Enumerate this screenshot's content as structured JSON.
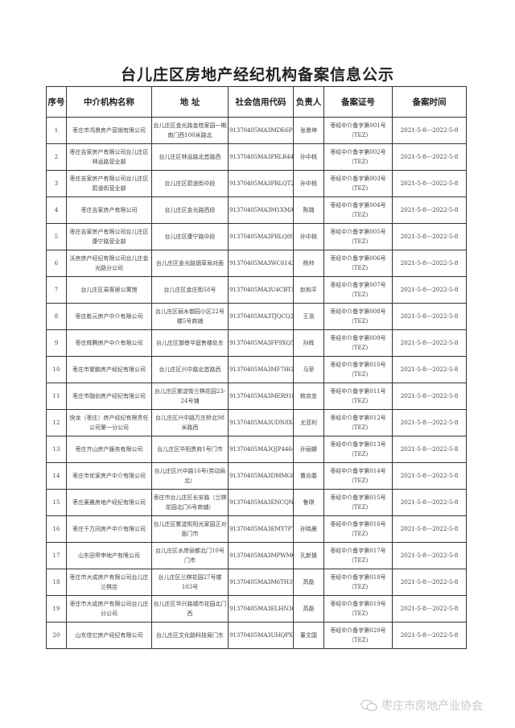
{
  "title": "台儿庄区房地产经纪机构备案信息公示",
  "headers": [
    "序号",
    "中介机构名称",
    "地 址",
    "社会信用代码",
    "负责人",
    "备案证号",
    "备案时间"
  ],
  "rows": [
    {
      "no": "1",
      "name": "枣庄市鸿景房产营销有限公司",
      "address": "台儿庄区金光路金桂家园一期南门西100米路北",
      "code": "91370405MA3MDE6P4D",
      "person": "张景坤",
      "cert": "枣经中介备字第001号（TEZ)",
      "period": "2021-5-8---2022-5-8"
    },
    {
      "no": "2",
      "name": "枣庄吉家房产有限公司台儿庄区林运路营业部",
      "address": "台儿庄区林运路北首路西",
      "code": "91370405MA3PRLR443",
      "person": "孙中桃",
      "cert": "枣经中介备字第002号（TEZ)",
      "period": "2021-5-8---2022-5-8"
    },
    {
      "no": "3",
      "name": "枣庄吉家房产有限公司台儿庄区箭道街营业部",
      "address": "台儿庄区箭道街中段",
      "code": "91370405MA3PRLQT2X",
      "person": "孙中桃",
      "cert": "枣经中介备字第003号（TEZ)",
      "period": "2021-5-8---2022-5-8"
    },
    {
      "no": "4",
      "name": "枣庄吉家房产有限公司",
      "address": "台儿庄区金光路西段",
      "code": "91370405MA3M1XMAX2",
      "person": "陈璐",
      "cert": "枣经中介备字第004号（TEZ)",
      "period": "2021-5-8---2022-5-8"
    },
    {
      "no": "5",
      "name": "枣庄吉家房产有限公司台儿庄区康宁路营业部",
      "address": "台儿庄区康宁路中段",
      "code": "91370405MA3PRLQ805",
      "person": "孙中桃",
      "cert": "枣经中介备字第005号（TEZ)",
      "period": "2021-5-8---2022-5-8"
    },
    {
      "no": "6",
      "name": "沃房房产经纪有限公司台儿庄金光路分公司",
      "address": "台儿庄区金光路烟草局对面",
      "code": "91370405MA3WC6142P",
      "person": "杨帅",
      "cert": "枣经中介备字第006号（TEZ)",
      "period": "2021-5-8---2022-5-8"
    },
    {
      "no": "7",
      "name": "台儿庄区易客居公寓馆",
      "address": "台儿庄区金庄街58号",
      "code": "91370405MA3U4CBT1U",
      "person": "赵和平",
      "cert": "枣经中介备字第007号（TEZ)",
      "period": "2021-5-8---2022-5-8"
    },
    {
      "no": "8",
      "name": "枣庄乾元房产中介有限公司",
      "address": "台儿庄区丽水御园小区22号楼5号商铺",
      "code": "91370405MA3TJQCQ26",
      "person": "王浩",
      "cert": "枣经中介备字第008号（TEZ)",
      "period": "2021-5-8---2022-5-8"
    },
    {
      "no": "9",
      "name": "枣庄辉腾房产中介有限公司",
      "address": "台儿庄区御景华庭售楼处东",
      "code": "91370405MA3FF9XQ50",
      "person": "孙辉",
      "cert": "枣经中介备字第009号（TEZ)",
      "period": "2021-5-8---2022-5-8"
    },
    {
      "no": "10",
      "name": "枣庄市聚鹏房产经纪有限公司",
      "address": "台儿庄区兴中路北首路西",
      "code": "91370405MA3MF7HG2B",
      "person": "马菲",
      "cert": "枣经中介备字第010号（TEZ)",
      "period": "2021-5-8---2022-5-8"
    },
    {
      "no": "11",
      "name": "枣庄市融创房产经纪有限公司",
      "address": "台儿庄区紫淀街兰棋花园23-24号铺",
      "code": "91370405MA3MER918B",
      "person": "韩京忠",
      "cert": "枣经中介备字第011号（TEZ)",
      "period": "2021-5-8---2022-5-8"
    },
    {
      "no": "12",
      "name": "快龙（枣庄）房产经纪有限责任公司第一分公司",
      "address": "台儿庄区兴中路万庄桥北98米路西",
      "code": "91370405MA3UDN8X48",
      "person": "尤亚利",
      "cert": "枣经中介备字第012号（TEZ)",
      "period": "2021-5-8---2022-5-8"
    },
    {
      "no": "13",
      "name": "枣庄齐山房产服务有限公司",
      "address": "台儿庄区华阳贵府1号门市",
      "code": "91370405MA3QJP4464",
      "person": "孙丽娜",
      "cert": "枣经中介备字第013号（TEZ)",
      "period": "2021-5-8---2022-5-8"
    },
    {
      "no": "14",
      "name": "枣庄市优家房产中介有限公司",
      "address": "台儿庄区兴中路16号(劳动局北）",
      "code": "91370405MA3DMMG06G",
      "person": "曹向春",
      "cert": "枣经中介备字第014号（TEZ)",
      "period": "2021-5-8---2022-5-8"
    },
    {
      "no": "15",
      "name": "枣庄豪晨房地产经纪有限公司",
      "address": "枣庄市台儿庄区长安路（兰棋花园北门6号商铺）",
      "code": "91370405MA3ENCQN96",
      "person": "鲁琪",
      "cert": "枣经中介备字第015号（TEZ)",
      "period": "2021-5-8---2022-5-8"
    },
    {
      "no": "16",
      "name": "枣庄千万间房产中介有限公司",
      "address": "台儿庄区紫淀街阳光家园正对面门市",
      "code": "91370405MA3EMY7P7U",
      "person": "孙晓晨",
      "cert": "枣经中介备字第016号（TEZ)",
      "period": "2021-5-8---2022-5-8"
    },
    {
      "no": "17",
      "name": "山东田甲申地产有限公司",
      "address": "台儿庄区水岸丽都北门10号门市",
      "code": "91370405MA3MPWMG7Y",
      "person": "孔新换",
      "cert": "枣经中介备字第017号（TEZ)",
      "period": "2021-5-8---2022-5-8"
    },
    {
      "no": "18",
      "name": "枣庄市大成房产有限公司台儿庄兰棋店",
      "address": "台儿庄区兰棋花园27号楼103号",
      "code": "91370405MA3M6TH371",
      "person": "高磊",
      "cert": "枣经中介备字第018号（TEZ)",
      "period": "2021-5-8---2022-5-8"
    },
    {
      "no": "19",
      "name": "枣庄市大成房产有限公司台儿庄分公司",
      "address": "台儿庄区华兴路城市花园北门西",
      "code": "91370405MA3ELHN3G",
      "person": "高磊",
      "cert": "枣经中介备字第019号（TEZ)",
      "period": "2021-5-8---2022-5-8"
    },
    {
      "no": "20",
      "name": "山东佳亿房产经纪有限公司",
      "address": "台儿庄区文化路科技局门东",
      "code": "91370405MA3UHQPXZL",
      "person": "董文国",
      "cert": "枣经中介备字第020号（TEZ)",
      "period": "2021-5-8---2022-5-8"
    }
  ],
  "watermark": {
    "text": "枣庄市房地产业协会",
    "icon": "wechat-icon",
    "color": "#c8c8c8"
  }
}
